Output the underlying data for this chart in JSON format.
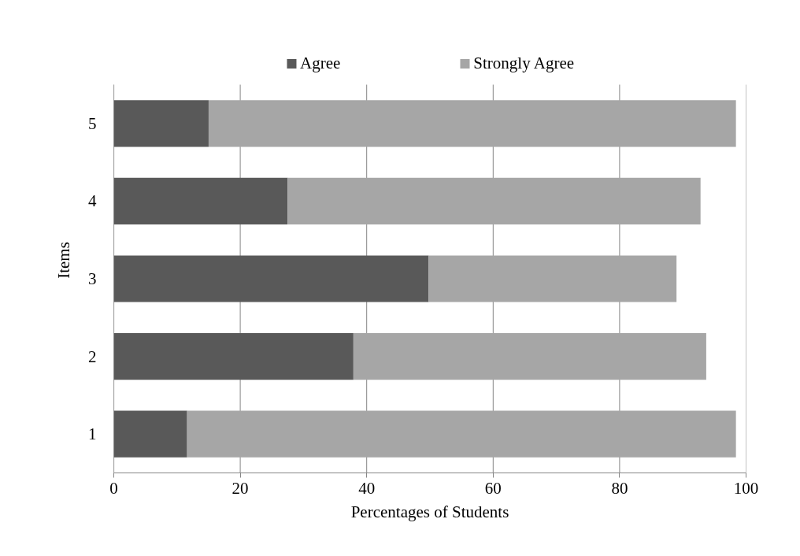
{
  "chart_data": {
    "type": "bar",
    "orientation": "horizontal",
    "stacked": true,
    "xlabel": "Percentages of Students",
    "ylabel": "Items",
    "categories": [
      "5",
      "4",
      "3",
      "2",
      "1"
    ],
    "series": [
      {
        "name": "Agree",
        "color": "#595959",
        "values": [
          15.0,
          27.5,
          49.8,
          37.9,
          11.6
        ]
      },
      {
        "name": "Strongly Agree",
        "color": "#a6a6a6",
        "values": [
          83.4,
          65.3,
          39.2,
          55.8,
          86.8
        ]
      }
    ],
    "xlim": [
      0,
      100
    ],
    "xticks": [
      0,
      20,
      40,
      60,
      80,
      100
    ],
    "grid": "x",
    "legend": "top"
  }
}
